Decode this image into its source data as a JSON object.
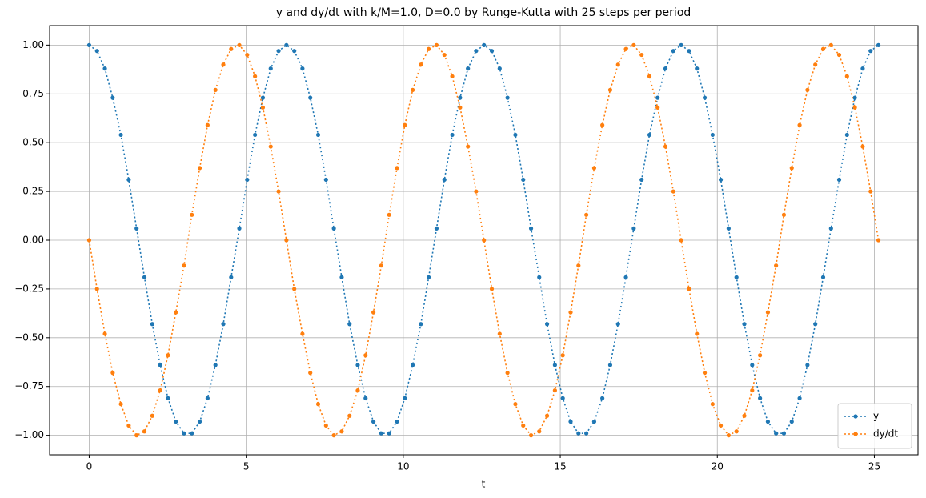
{
  "chart_data": {
    "type": "line",
    "title": "y and dy/dt with k/M=1.0, D=0.0 by Runge-Kutta with 25 steps per period",
    "x_label": "t",
    "x": [
      0,
      0.25,
      0.5,
      0.75,
      1.01,
      1.26,
      1.51,
      1.76,
      2.01,
      2.26,
      2.51,
      2.76,
      3.02,
      3.27,
      3.52,
      3.77,
      4.02,
      4.27,
      4.52,
      4.78,
      5.03,
      5.28,
      5.53,
      5.78,
      6.03,
      6.28,
      6.53,
      6.79,
      7.04,
      7.29,
      7.54,
      7.79,
      8.04,
      8.29,
      8.55,
      8.8,
      9.05,
      9.3,
      9.55,
      9.8,
      10.05,
      10.3,
      10.56,
      10.81,
      11.06,
      11.31,
      11.56,
      11.81,
      12.06,
      12.32,
      12.57,
      12.82,
      13.07,
      13.32,
      13.57,
      13.82,
      14.07,
      14.33,
      14.58,
      14.83,
      15.08,
      15.33,
      15.58,
      15.83,
      16.08,
      16.34,
      16.59,
      16.84,
      17.09,
      17.34,
      17.59,
      17.84,
      18.1,
      18.35,
      18.6,
      18.85,
      19.1,
      19.35,
      19.6,
      19.85,
      20.11,
      20.36,
      20.61,
      20.86,
      21.11,
      21.36,
      21.61,
      21.87,
      22.12,
      22.37,
      22.62,
      22.87,
      23.12,
      23.37,
      23.62,
      23.88,
      24.13,
      24.38,
      24.63,
      24.88,
      25.13
    ],
    "series": [
      {
        "name": "y",
        "color": "#1f77b4",
        "values": [
          1,
          0.97,
          0.88,
          0.73,
          0.54,
          0.31,
          0.06,
          -0.19,
          -0.43,
          -0.64,
          -0.81,
          -0.93,
          -0.99,
          -0.99,
          -0.93,
          -0.81,
          -0.64,
          -0.43,
          -0.19,
          0.06,
          0.31,
          0.54,
          0.73,
          0.88,
          0.97,
          1,
          0.97,
          0.88,
          0.73,
          0.54,
          0.31,
          0.06,
          -0.19,
          -0.43,
          -0.64,
          -0.81,
          -0.93,
          -0.99,
          -0.99,
          -0.93,
          -0.81,
          -0.64,
          -0.43,
          -0.19,
          0.06,
          0.31,
          0.54,
          0.73,
          0.88,
          0.97,
          1,
          0.97,
          0.88,
          0.73,
          0.54,
          0.31,
          0.06,
          -0.19,
          -0.43,
          -0.64,
          -0.81,
          -0.93,
          -0.99,
          -0.99,
          -0.93,
          -0.81,
          -0.64,
          -0.43,
          -0.19,
          0.06,
          0.31,
          0.54,
          0.73,
          0.88,
          0.97,
          1,
          0.97,
          0.88,
          0.73,
          0.54,
          0.31,
          0.06,
          -0.19,
          -0.43,
          -0.64,
          -0.81,
          -0.93,
          -0.99,
          -0.99,
          -0.93,
          -0.81,
          -0.64,
          -0.43,
          -0.19,
          0.06,
          0.31,
          0.54,
          0.73,
          0.88,
          0.97,
          1
        ]
      },
      {
        "name": "dy/dt",
        "color": "#ff7f0e",
        "values": [
          0,
          -0.25,
          -0.48,
          -0.68,
          -0.84,
          -0.95,
          -1,
          -0.98,
          -0.9,
          -0.77,
          -0.59,
          -0.37,
          -0.13,
          0.13,
          0.37,
          0.59,
          0.77,
          0.9,
          0.98,
          1,
          0.95,
          0.84,
          0.68,
          0.48,
          0.25,
          0,
          -0.25,
          -0.48,
          -0.68,
          -0.84,
          -0.95,
          -1,
          -0.98,
          -0.9,
          -0.77,
          -0.59,
          -0.37,
          -0.13,
          0.13,
          0.37,
          0.59,
          0.77,
          0.9,
          0.98,
          1,
          0.95,
          0.84,
          0.68,
          0.48,
          0.25,
          0,
          -0.25,
          -0.48,
          -0.68,
          -0.84,
          -0.95,
          -1,
          -0.98,
          -0.9,
          -0.77,
          -0.59,
          -0.37,
          -0.13,
          0.13,
          0.37,
          0.59,
          0.77,
          0.9,
          0.98,
          1,
          0.95,
          0.84,
          0.68,
          0.48,
          0.25,
          0,
          -0.25,
          -0.48,
          -0.68,
          -0.84,
          -0.95,
          -1,
          -0.98,
          -0.9,
          -0.77,
          -0.59,
          -0.37,
          -0.13,
          0.13,
          0.37,
          0.59,
          0.77,
          0.9,
          0.98,
          1,
          0.95,
          0.84,
          0.68,
          0.48,
          0.25,
          0
        ]
      }
    ],
    "xlim": [
      -1.26,
      26.39
    ],
    "ylim": [
      -1.1,
      1.1
    ],
    "xticks": [
      0,
      5,
      10,
      15,
      20,
      25
    ],
    "yticks": [
      {
        "value": -1,
        "label": "−1.00"
      },
      {
        "value": -0.75,
        "label": "−0.75"
      },
      {
        "value": -0.5,
        "label": "−0.50"
      },
      {
        "value": -0.25,
        "label": "−0.25"
      },
      {
        "value": 0,
        "label": "0.00"
      },
      {
        "value": 0.25,
        "label": "0.25"
      },
      {
        "value": 0.5,
        "label": "0.50"
      },
      {
        "value": 0.75,
        "label": "0.75"
      },
      {
        "value": 1,
        "label": "1.00"
      }
    ],
    "grid": true,
    "legend": "lower right",
    "line_style": "dotted",
    "marker": "circle"
  }
}
